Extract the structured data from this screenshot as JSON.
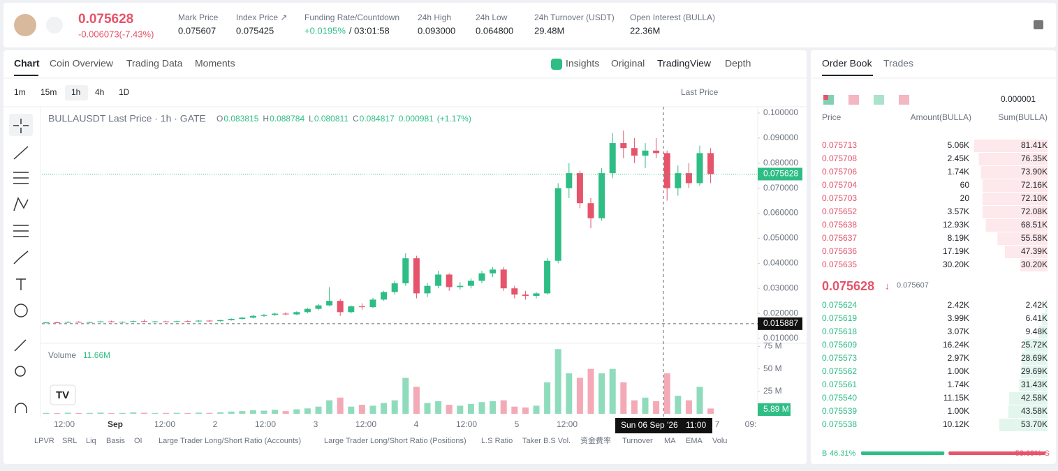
{
  "header": {
    "price": "0.075628",
    "change": "-0.006073(-7.43%)",
    "stats": [
      {
        "label": "Mark Price",
        "value": "0.075607"
      },
      {
        "label": "Index Price ↗",
        "value": "0.075425"
      },
      {
        "label": "Funding Rate/Countdown",
        "value": "+0.0195%",
        "extra": "/ 03:01:58"
      },
      {
        "label": "24h High",
        "value": "0.093000"
      },
      {
        "label": "24h Low",
        "value": "0.064800"
      },
      {
        "label": "24h Turnover (USDT)",
        "value": "29.48M"
      },
      {
        "label": "Open Interest (BULLA)",
        "value": "22.36M"
      }
    ]
  },
  "tabs": [
    "Chart",
    "Coin Overview",
    "Trading Data",
    "Moments"
  ],
  "views": [
    "Insights",
    "Original",
    "TradingView",
    "Depth"
  ],
  "intervals": [
    "1m",
    "15m",
    "1h",
    "4h",
    "1D"
  ],
  "price_source": "Last Price",
  "chart_data": {
    "type": "candlestick",
    "title": "BULLAUSDT Last Price · 1h · GATE",
    "legend": [
      {
        "key": "O",
        "value": "0.083815"
      },
      {
        "key": "H",
        "value": "0.088784"
      },
      {
        "key": "L",
        "value": "0.080811"
      },
      {
        "key": "C",
        "value": "0.084817"
      }
    ],
    "legend_change": "0.000981",
    "legend_pct": "(+1.17%)",
    "ohlc": [
      [
        0.0162,
        0.0166,
        0.016,
        0.0164
      ],
      [
        0.0164,
        0.0167,
        0.0161,
        0.0163
      ],
      [
        0.0163,
        0.0168,
        0.0161,
        0.0166
      ],
      [
        0.0166,
        0.0169,
        0.0163,
        0.0164
      ],
      [
        0.0164,
        0.0167,
        0.0162,
        0.0165
      ],
      [
        0.0165,
        0.017,
        0.0163,
        0.0168
      ],
      [
        0.0168,
        0.0171,
        0.0164,
        0.0165
      ],
      [
        0.0165,
        0.0168,
        0.0162,
        0.0166
      ],
      [
        0.0166,
        0.0172,
        0.0164,
        0.0169
      ],
      [
        0.0169,
        0.0176,
        0.0165,
        0.0167
      ],
      [
        0.0167,
        0.017,
        0.0163,
        0.0168
      ],
      [
        0.0168,
        0.0171,
        0.0165,
        0.0167
      ],
      [
        0.0167,
        0.0171,
        0.0164,
        0.0169
      ],
      [
        0.0169,
        0.0172,
        0.0166,
        0.0168
      ],
      [
        0.0168,
        0.0173,
        0.0165,
        0.0171
      ],
      [
        0.0171,
        0.0174,
        0.0167,
        0.0169
      ],
      [
        0.0169,
        0.0175,
        0.0167,
        0.0173
      ],
      [
        0.0173,
        0.018,
        0.0171,
        0.0178
      ],
      [
        0.0178,
        0.0186,
        0.0175,
        0.0183
      ],
      [
        0.0183,
        0.0195,
        0.018,
        0.019
      ],
      [
        0.019,
        0.0198,
        0.0186,
        0.0194
      ],
      [
        0.0194,
        0.0203,
        0.019,
        0.0199
      ],
      [
        0.0199,
        0.0205,
        0.0192,
        0.0196
      ],
      [
        0.0196,
        0.0208,
        0.0193,
        0.0205
      ],
      [
        0.0205,
        0.0222,
        0.02,
        0.0218
      ],
      [
        0.0218,
        0.0238,
        0.0212,
        0.0232
      ],
      [
        0.0232,
        0.0305,
        0.0228,
        0.025
      ],
      [
        0.025,
        0.0258,
        0.019,
        0.0205
      ],
      [
        0.0205,
        0.0232,
        0.02,
        0.0228
      ],
      [
        0.0228,
        0.024,
        0.0215,
        0.0225
      ],
      [
        0.0225,
        0.0262,
        0.022,
        0.0255
      ],
      [
        0.0255,
        0.029,
        0.025,
        0.0285
      ],
      [
        0.0285,
        0.033,
        0.0275,
        0.032
      ],
      [
        0.032,
        0.044,
        0.031,
        0.042
      ],
      [
        0.042,
        0.043,
        0.026,
        0.028
      ],
      [
        0.028,
        0.032,
        0.0265,
        0.031
      ],
      [
        0.031,
        0.037,
        0.03,
        0.0355
      ],
      [
        0.0355,
        0.036,
        0.029,
        0.0305
      ],
      [
        0.0305,
        0.0325,
        0.0295,
        0.031
      ],
      [
        0.031,
        0.034,
        0.03,
        0.033
      ],
      [
        0.033,
        0.037,
        0.032,
        0.036
      ],
      [
        0.036,
        0.0385,
        0.0345,
        0.0375
      ],
      [
        0.0375,
        0.0385,
        0.029,
        0.03
      ],
      [
        0.03,
        0.031,
        0.026,
        0.0275
      ],
      [
        0.0275,
        0.029,
        0.0255,
        0.027
      ],
      [
        0.027,
        0.0285,
        0.026,
        0.028
      ],
      [
        0.028,
        0.042,
        0.0275,
        0.041
      ],
      [
        0.041,
        0.072,
        0.04,
        0.07
      ],
      [
        0.07,
        0.08,
        0.066,
        0.076
      ],
      [
        0.076,
        0.077,
        0.062,
        0.064
      ],
      [
        0.064,
        0.066,
        0.054,
        0.058
      ],
      [
        0.058,
        0.078,
        0.057,
        0.076
      ],
      [
        0.076,
        0.092,
        0.074,
        0.088
      ],
      [
        0.088,
        0.093,
        0.082,
        0.086
      ],
      [
        0.086,
        0.09,
        0.08,
        0.083
      ],
      [
        0.083,
        0.088,
        0.078,
        0.085
      ],
      [
        0.085,
        0.09,
        0.082,
        0.084
      ],
      [
        0.084,
        0.085,
        0.065,
        0.07
      ],
      [
        0.07,
        0.079,
        0.067,
        0.076
      ],
      [
        0.076,
        0.08,
        0.07,
        0.072
      ],
      [
        0.072,
        0.087,
        0.071,
        0.084
      ],
      [
        0.084,
        0.086,
        0.072,
        0.0756
      ]
    ],
    "volume": [
      1,
      0.8,
      1.2,
      0.9,
      1,
      1.3,
      0.8,
      1,
      1.5,
      1.2,
      0.9,
      1,
      1.1,
      0.9,
      1.3,
      1,
      1.6,
      2.5,
      3,
      4,
      3.5,
      4.5,
      3,
      5,
      6,
      8,
      15,
      18,
      8,
      10,
      9,
      12,
      15,
      40,
      30,
      12,
      14,
      10,
      9,
      11,
      13,
      14,
      15,
      8,
      7,
      9,
      35,
      72,
      45,
      40,
      50,
      45,
      50,
      35,
      15,
      18,
      14,
      45,
      20,
      15,
      30,
      5.89
    ],
    "volume_label": "Volume",
    "volume_value": "11.66M",
    "volume_tag": "5.89 M",
    "ylim": [
      0.0085,
      0.1025
    ],
    "yticks": [
      {
        "value": 0.1,
        "label": "0.100000"
      },
      {
        "value": 0.09,
        "label": "0.090000"
      },
      {
        "value": 0.08,
        "label": "0.080000"
      },
      {
        "value": 0.07,
        "label": "0.070000"
      },
      {
        "value": 0.06,
        "label": "0.060000"
      },
      {
        "value": 0.05,
        "label": "0.050000"
      },
      {
        "value": 0.04,
        "label": "0.040000"
      },
      {
        "value": 0.03,
        "label": "0.030000"
      },
      {
        "value": 0.02,
        "label": "0.020000"
      },
      {
        "value": 0.01,
        "label": "0.010000"
      }
    ],
    "vlim": [
      0,
      80
    ],
    "vticks": [
      {
        "value": 75,
        "label": "75 M"
      },
      {
        "value": 50,
        "label": "50 M"
      },
      {
        "value": 25,
        "label": "25 M"
      }
    ],
    "last_price": {
      "value": 0.075628,
      "label": "0.075628"
    },
    "crosshair": {
      "value": 0.015887,
      "label": "0.015887"
    },
    "xlabels": [
      "12:00",
      "Sep",
      "12:00",
      "2",
      "12:00",
      "3",
      "12:00",
      "4",
      "12:00",
      "5",
      "12:00",
      "7",
      "09:"
    ],
    "hover_date": "Sun 06 Sep '26",
    "hover_time": "11:00"
  },
  "indicators": [
    "LPVR",
    "SRL",
    "Liq",
    "Basis",
    "OI",
    "Large Trader Long/Short Ratio (Accounts)",
    "Large Trader Long/Short Ratio (Positions)",
    "L.S Ratio",
    "Taker B.S Vol.",
    "资金费率",
    "Turnover",
    "MA",
    "EMA",
    "Volu"
  ],
  "order_book": {
    "tabs": [
      "Order Book",
      "Trades"
    ],
    "precision": "0.000001",
    "columns": [
      "Price",
      "Amount(BULLA)",
      "Sum(BULLA)"
    ],
    "asks": [
      [
        "0.075713",
        "5.06K",
        "81.41K"
      ],
      [
        "0.075708",
        "2.45K",
        "76.35K"
      ],
      [
        "0.075706",
        "1.74K",
        "73.90K"
      ],
      [
        "0.075704",
        "60",
        "72.16K"
      ],
      [
        "0.075703",
        "20",
        "72.10K"
      ],
      [
        "0.075652",
        "3.57K",
        "72.08K"
      ],
      [
        "0.075638",
        "12.93K",
        "68.51K"
      ],
      [
        "0.075637",
        "8.19K",
        "55.58K"
      ],
      [
        "0.075636",
        "17.19K",
        "47.39K"
      ],
      [
        "0.075635",
        "30.20K",
        "30.20K"
      ]
    ],
    "mid_price": "0.075628",
    "mark": "0.075607",
    "bids": [
      [
        "0.075624",
        "2.42K",
        "2.42K"
      ],
      [
        "0.075619",
        "3.99K",
        "6.41K"
      ],
      [
        "0.075618",
        "3.07K",
        "9.48K"
      ],
      [
        "0.075609",
        "16.24K",
        "25.72K"
      ],
      [
        "0.075573",
        "2.97K",
        "28.69K"
      ],
      [
        "0.075562",
        "1.00K",
        "29.69K"
      ],
      [
        "0.075561",
        "1.74K",
        "31.43K"
      ],
      [
        "0.075540",
        "11.15K",
        "42.58K"
      ],
      [
        "0.075539",
        "1.00K",
        "43.58K"
      ],
      [
        "0.075538",
        "10.12K",
        "53.70K"
      ]
    ],
    "buy_key": "B",
    "sell_key": "S",
    "buy": {
      "value": 46.31,
      "label": "46.31%"
    },
    "sell": {
      "value": 53.69,
      "label": "53.69%"
    }
  }
}
